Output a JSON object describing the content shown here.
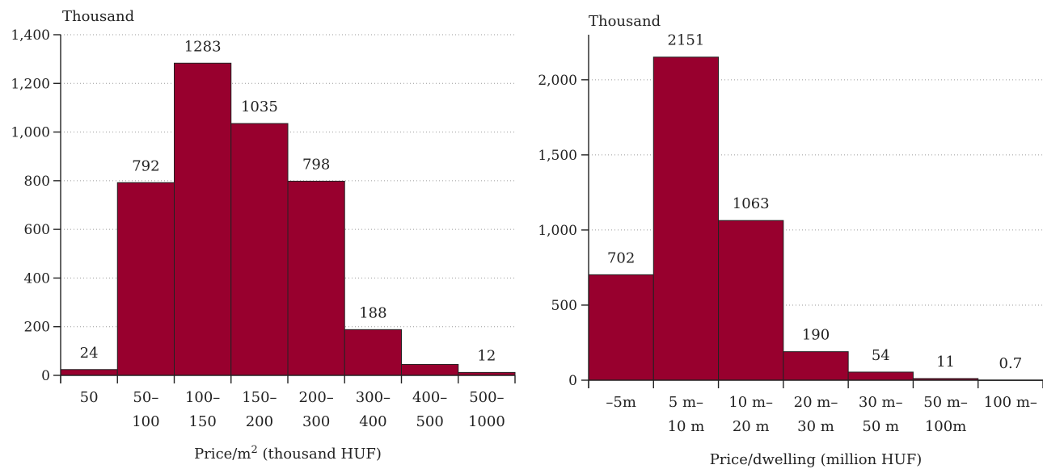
{
  "chart_data": [
    {
      "type": "bar",
      "unit_label": "Thousand",
      "xlabel": "Price/m",
      "xlabel_sup": "2",
      "xlabel_suffix": " (thousand HUF)",
      "ylim": [
        0,
        1400
      ],
      "yticks": [
        0,
        200,
        400,
        600,
        800,
        1000,
        1200,
        1400
      ],
      "ytick_labels": [
        "0",
        "200",
        "400",
        "600",
        "800",
        "1,000",
        "1,200",
        "1,400"
      ],
      "categories": [
        [
          "50"
        ],
        [
          "50–",
          "100"
        ],
        [
          "100–",
          "150"
        ],
        [
          "150–",
          "200"
        ],
        [
          "200–",
          "300"
        ],
        [
          "300–",
          "400"
        ],
        [
          "400–",
          "500"
        ],
        [
          "500–",
          "1000"
        ]
      ],
      "values": [
        24,
        792,
        1283,
        1035,
        798,
        188,
        45,
        12
      ],
      "data_labels": [
        "24",
        "792",
        "1283",
        "1035",
        "798",
        "188",
        "",
        "12"
      ],
      "grid": true,
      "colors": {
        "bar": "#98002e"
      }
    },
    {
      "type": "bar",
      "unit_label": "Thousand",
      "xlabel": "Price/dwelling (million HUF)",
      "ylim": [
        0,
        2300
      ],
      "yticks": [
        0,
        500,
        1000,
        1500,
        2000
      ],
      "ytick_labels": [
        "0",
        "500",
        "1,000",
        "1,500",
        "2,000"
      ],
      "categories": [
        [
          "–5m"
        ],
        [
          "5 m–",
          "10 m"
        ],
        [
          "10 m–",
          "20 m"
        ],
        [
          "20 m–",
          "30 m"
        ],
        [
          "30 m–",
          "50 m"
        ],
        [
          "50 m–",
          "100m"
        ],
        [
          "100 m–"
        ]
      ],
      "values": [
        702,
        2151,
        1063,
        190,
        54,
        11,
        0.7
      ],
      "data_labels": [
        "702",
        "2151",
        "1063",
        "190",
        "54",
        "11",
        "0.7"
      ],
      "grid": true,
      "colors": {
        "bar": "#98002e"
      }
    }
  ]
}
